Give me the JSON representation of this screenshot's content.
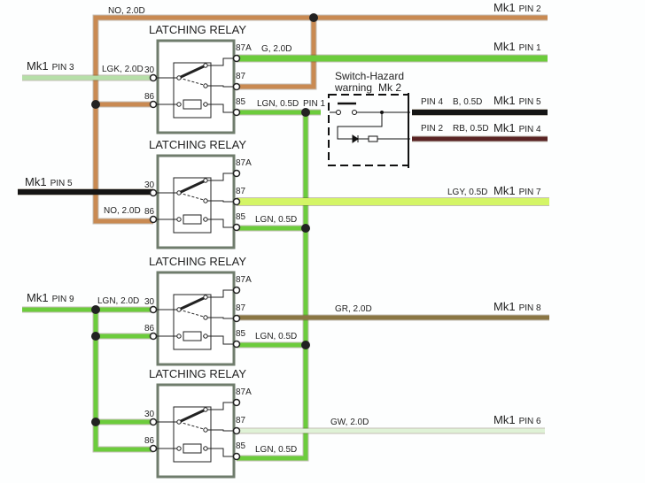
{
  "colors": {
    "brown": "#c98a52",
    "green": "#6ccc3c",
    "light_green": "#b6dfa8",
    "yellow_green": "#d4f566",
    "black": "#151515",
    "dark_red": "#5a2424",
    "olive": "#8a7644",
    "pale_green": "#dff2d6",
    "relay_box": "#6f7c6c"
  },
  "relay_title": "LATCHING RELAY",
  "terminals": {
    "t30": "30",
    "t86": "86",
    "t87a": "87A",
    "t87": "87",
    "t85": "85"
  },
  "labels": {
    "no_top": "NO, 2.0D",
    "no_relay2": "NO, 2.0D",
    "lgk": "LGK, 2.0D",
    "g": "G, 2.0D",
    "lgn_r1": "LGN, 0.5D",
    "pin1": "PIN 1",
    "lgn_r2": "LGN, 0.5D",
    "lgn_in": "LGN, 2.0D",
    "lgn_r3": "LGN, 0.5D",
    "lgn_r4": "LGN, 0.5D",
    "gr": "GR, 2.0D",
    "gw": "GW, 2.0D",
    "lgy": "LGY, 0.5D",
    "pin4": "PIN 4",
    "b": "B, 0.5D",
    "pin2": "PIN 2",
    "rb": "RB, 0.5D",
    "switch_line1": "Switch-Hazard",
    "switch_line2": "warning",
    "switch_mk": "Mk 2"
  },
  "connectors": {
    "pin2": {
      "mk": "Mk1",
      "pin": "PIN 2"
    },
    "pin1": {
      "mk": "Mk1",
      "pin": "PIN 1"
    },
    "pin3": {
      "mk": "Mk1",
      "pin": "PIN 3"
    },
    "pin5_out": {
      "mk": "Mk1",
      "pin": "PIN 5"
    },
    "pin4": {
      "mk": "Mk1",
      "pin": "PIN 4"
    },
    "pin5_in": {
      "mk": "Mk1",
      "pin": "PIN 5"
    },
    "pin7": {
      "mk": "Mk1",
      "pin": "PIN 7"
    },
    "pin9": {
      "mk": "Mk1",
      "pin": "PIN 9"
    },
    "pin8": {
      "mk": "Mk1",
      "pin": "PIN 8"
    },
    "pin6": {
      "mk": "Mk1",
      "pin": "PIN 6"
    }
  }
}
